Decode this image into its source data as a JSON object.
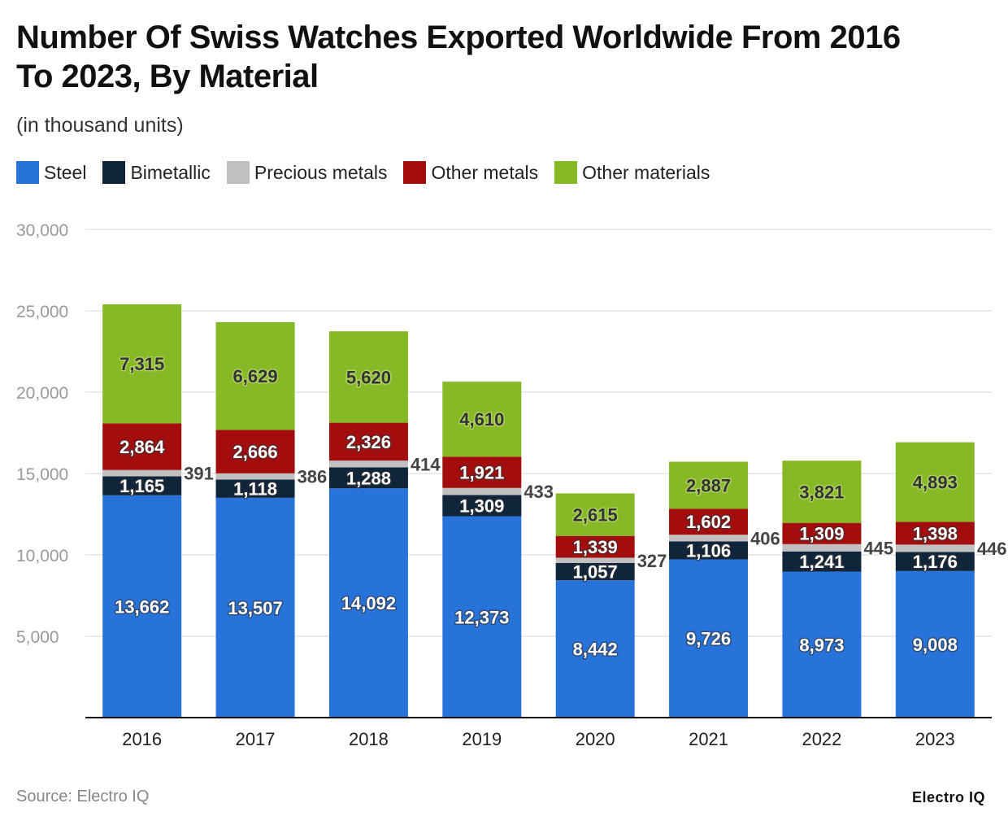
{
  "title": "Number Of Swiss Watches Exported Worldwide From 2016 To 2023, By Material",
  "subtitle": "(in thousand units)",
  "source": "Source: Electro IQ",
  "brand": "Electro IQ",
  "chart_data": {
    "type": "bar",
    "stacked": true,
    "categories": [
      "2016",
      "2017",
      "2018",
      "2019",
      "2020",
      "2021",
      "2022",
      "2023"
    ],
    "series": [
      {
        "name": "Steel",
        "color": "#2873d9",
        "values": [
          13662,
          13507,
          14092,
          12373,
          8442,
          9726,
          8973,
          9008
        ]
      },
      {
        "name": "Bimetallic",
        "color": "#10243a",
        "values": [
          1165,
          1118,
          1288,
          1309,
          1057,
          1106,
          1241,
          1176
        ]
      },
      {
        "name": "Precious metals",
        "color": "#c0c0c0",
        "values": [
          391,
          386,
          414,
          433,
          327,
          406,
          445,
          446
        ]
      },
      {
        "name": "Other metals",
        "color": "#a30d0d",
        "values": [
          2864,
          2666,
          2326,
          1921,
          1339,
          1602,
          1309,
          1398
        ]
      },
      {
        "name": "Other materials",
        "color": "#87b825",
        "values": [
          7315,
          6629,
          5620,
          4610,
          2615,
          2887,
          3821,
          4893
        ]
      }
    ],
    "ylim": [
      0,
      30000
    ],
    "yticks": [
      5000,
      10000,
      15000,
      20000,
      25000,
      30000
    ],
    "ytick_labels": [
      "5,000",
      "10,000",
      "15,000",
      "20,000",
      "25,000",
      "30,000"
    ],
    "grid": true,
    "legend": "top-left"
  }
}
